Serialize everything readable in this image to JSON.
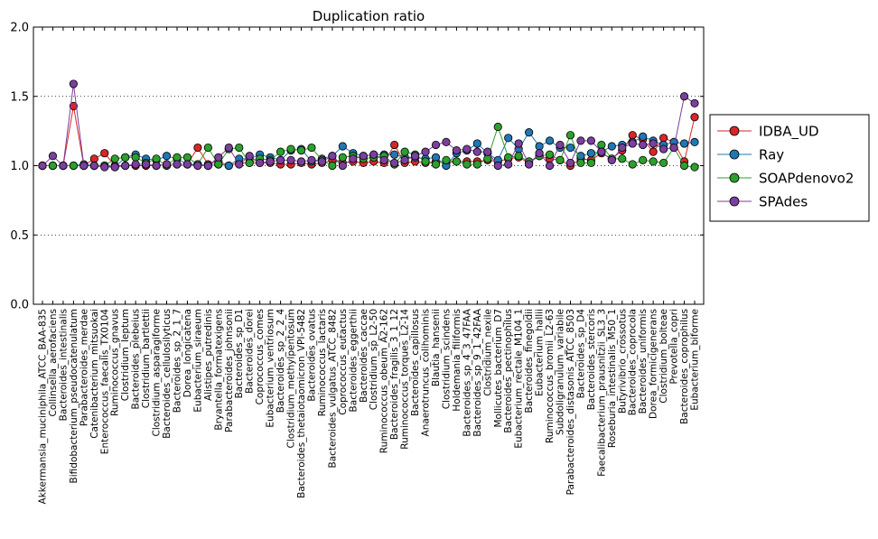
{
  "chart_data": {
    "type": "line",
    "title": "Duplication ratio",
    "xlabel": "",
    "ylabel": "",
    "ylim": [
      0.0,
      2.0
    ],
    "yticks": [
      "0.0",
      "0.5",
      "1.0",
      "1.5",
      "2.0"
    ],
    "ytick_values": [
      0.0,
      0.5,
      1.0,
      1.5,
      2.0
    ],
    "grid": "horizontal dotted",
    "legend_position": "right",
    "categories": [
      "Akkermansia_muciniphila_ATCC_BAA-835",
      "Collinsella_aerofaciens",
      "Bacteroides_intestinalis",
      "Bifidobacterium_pseudocatenulatum",
      "Parabacteroides_merdae",
      "Catenibacterium_mitsuokai",
      "Enterococcus_faecalis_TX0104",
      "Ruminococcus_gnavus",
      "Clostridium_leptum",
      "Bacteroides_plebeius",
      "Clostridium_bartlettii",
      "Clostridium_asparagiforme",
      "Bacteroides_cellulosilyticus",
      "Bacteroides_sp_2_1_7",
      "Dorea_longicatena",
      "Eubacterium_siraeum",
      "Alistipes_putredinis",
      "Bryantella_formatexigens",
      "Parabacteroides_johnsonii",
      "Bacteroides_sp_D1",
      "Bacteroides_dorei",
      "Coprococcus_comes",
      "Eubacterium_ventriosum",
      "Bacteroides_sp_2_2_4",
      "Clostridium_methylpentosum",
      "Bacteroides_thetaiotaomicron_VPI-5482",
      "Bacteroides_ovatus",
      "Ruminococcus_lactaris",
      "Bacteroides_vulgatus_ATCC_8482",
      "Coprococcus_eutactus",
      "Bacteroides_eggerthii",
      "Bacteroides_caccae",
      "Clostridium_sp_L2-50",
      "Ruminococcus_obeum_A2-162",
      "Bacteroides_fragilis_3_1_12",
      "Ruminococcus_torques_L2-14",
      "Bacteroides_capillosus",
      "Anaerotruncus_colihominis",
      "Blautia_hansenii",
      "Clostridium_scindens",
      "Holdemania_filiformis",
      "Bacteroides_sp_4_3_47FAA",
      "Bacteroides_sp_9_1_42FAA",
      "Clostridium_nexile",
      "Mollicutes_bacterium_D7",
      "Bacteroides_pectinophilus",
      "Eubacterium_rectale_M104_1",
      "Bacteroides_finegoldii",
      "Eubacterium_hallii",
      "Ruminococcus_bromii_L2-63",
      "Subdoligranulum_variabile",
      "Parabacteroides_distasonis_ATCC_8503",
      "Bacteroides_sp_D4",
      "Bacteroides_stercoris",
      "Faecalibacterium_prausnitzii_SL3_3",
      "Roseburia_intestinalis_M50_1",
      "Butyrivibrio_crossotus",
      "Bacteroides_coprocola",
      "Bacteroides_uniformis",
      "Dorea_formicigenerans",
      "Clostridium_bolteae",
      "Prevotella_copri",
      "Bacteroides_coprophilus",
      "Eubacterium_biforme"
    ],
    "series": [
      {
        "name": "IDBA_UD",
        "color": "#d62728",
        "values": [
          1.0,
          1.0,
          1.0,
          1.43,
          1.0,
          1.05,
          1.09,
          1.0,
          1.0,
          1.0,
          1.0,
          1.0,
          1.01,
          1.01,
          1.01,
          1.13,
          1.01,
          1.03,
          1.0,
          1.02,
          1.02,
          1.02,
          1.02,
          1.01,
          1.01,
          1.02,
          1.01,
          1.02,
          1.04,
          1.02,
          1.03,
          1.02,
          1.03,
          1.02,
          1.15,
          1.02,
          1.03,
          1.02,
          1.03,
          1.02,
          1.03,
          1.03,
          1.03,
          1.04,
          1.03,
          1.05,
          1.06,
          1.02,
          1.07,
          1.05,
          1.04,
          1.0,
          1.05,
          1.04,
          1.09,
          1.05,
          1.11,
          1.22,
          1.19,
          1.1,
          1.2,
          1.17,
          1.03,
          1.35
        ]
      },
      {
        "name": "Ray",
        "color": "#1f77b4",
        "values": [
          1.0,
          1.0,
          1.0,
          1.0,
          1.01,
          1.0,
          1.0,
          0.99,
          1.06,
          1.08,
          1.05,
          1.04,
          1.07,
          1.05,
          1.01,
          1.01,
          1.0,
          1.01,
          1.0,
          1.05,
          1.05,
          1.08,
          1.06,
          1.04,
          1.11,
          1.12,
          1.03,
          1.05,
          1.07,
          1.14,
          1.09,
          1.07,
          1.08,
          1.08,
          1.08,
          1.06,
          1.06,
          1.05,
          1.06,
          1.0,
          1.09,
          1.11,
          1.16,
          1.09,
          1.04,
          1.2,
          1.12,
          1.24,
          1.14,
          1.18,
          1.13,
          1.13,
          1.07,
          1.09,
          1.1,
          1.14,
          1.15,
          1.17,
          1.21,
          1.18,
          1.15,
          1.17,
          1.16,
          1.17
        ]
      },
      {
        "name": "SOAPdenovo2",
        "color": "#2ca02c",
        "values": [
          1.0,
          1.0,
          1.0,
          1.0,
          1.0,
          1.0,
          1.0,
          1.05,
          1.06,
          1.06,
          1.02,
          1.05,
          1.0,
          1.06,
          1.06,
          1.01,
          1.13,
          1.01,
          1.12,
          1.13,
          1.02,
          1.05,
          1.04,
          1.1,
          1.12,
          1.11,
          1.13,
          1.04,
          1.0,
          1.06,
          1.07,
          1.05,
          1.06,
          1.07,
          1.01,
          1.1,
          1.08,
          1.03,
          1.01,
          1.04,
          1.03,
          1.01,
          1.01,
          1.05,
          1.28,
          1.06,
          1.07,
          1.03,
          1.07,
          1.08,
          1.04,
          1.22,
          1.02,
          1.02,
          1.15,
          1.05,
          1.05,
          1.01,
          1.04,
          1.03,
          1.02,
          1.13,
          1.0,
          0.99
        ]
      },
      {
        "name": "SPAdes",
        "color": "#7b3f9e",
        "values": [
          1.0,
          1.07,
          1.0,
          1.59,
          1.0,
          1.0,
          0.99,
          0.99,
          1.0,
          1.01,
          1.01,
          1.0,
          1.01,
          1.01,
          1.01,
          1.0,
          1.0,
          1.06,
          1.13,
          1.01,
          1.07,
          1.02,
          1.03,
          1.04,
          1.04,
          1.03,
          1.04,
          1.03,
          1.07,
          1.0,
          1.05,
          1.07,
          1.08,
          1.04,
          1.02,
          1.04,
          1.07,
          1.1,
          1.15,
          1.17,
          1.11,
          1.12,
          1.1,
          1.1,
          1.0,
          1.01,
          1.16,
          1.01,
          1.09,
          1.0,
          1.15,
          1.02,
          1.18,
          1.18,
          1.1,
          1.04,
          1.13,
          1.16,
          1.15,
          1.16,
          1.12,
          1.13,
          1.5,
          1.45
        ]
      }
    ]
  }
}
